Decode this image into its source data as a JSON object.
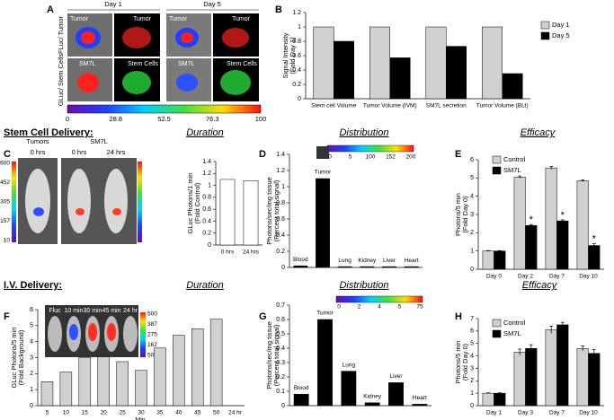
{
  "figure": {
    "sections": [
      "Stem Cell Delivery:",
      "I.V. Delivery:"
    ],
    "panel_a": {
      "letter": "A",
      "columns": [
        "Day 1",
        "Day 5"
      ],
      "rows": [
        "FLuc/ Tumor",
        "GLuc/ Stem Cells"
      ],
      "tiles": [
        "Tumor",
        "Tumor",
        "Tumor",
        "Tumor",
        "SM7L",
        "Stem Cells",
        "SM7L",
        "Stem Cells"
      ],
      "colorbar": [
        0,
        28.8,
        52.5,
        76.3,
        100
      ]
    },
    "panel_c": {
      "groups": [
        "Tumors",
        "SM7L"
      ],
      "times": [
        "0 hrs",
        "0 hrs",
        "24 hrs"
      ],
      "colorbar": [
        600,
        452,
        305,
        157,
        10
      ]
    },
    "panel_d": {
      "colorbar": [
        0,
        5,
        100,
        152,
        200
      ]
    },
    "panel_f": {
      "times": [
        "Fluc",
        "10 min",
        "30 min",
        "45 min",
        "24 hr"
      ],
      "colorbar": [
        500,
        387,
        275,
        162,
        50
      ]
    },
    "panel_g": {
      "colorbar": [
        0,
        2,
        4,
        5,
        75
      ]
    }
  },
  "chart_data": [
    {
      "type": "bar",
      "panel": "B",
      "ylabel": [
        "Signal Intensity",
        "(Fold Day 1)"
      ],
      "categories": [
        "Stem cell Volume",
        "Tumor Volume (IVM)",
        "SM7L secretion",
        "Tumor Volume (BLI)"
      ],
      "series": [
        {
          "name": "Day 1",
          "color": "#d0d0d0",
          "values": [
            1,
            1,
            1,
            1
          ]
        },
        {
          "name": "Day 5",
          "color": "#000000",
          "values": [
            0.8,
            0.57,
            0.73,
            0.35
          ]
        }
      ],
      "ylim": [
        0,
        1.2
      ],
      "yticks": [
        0,
        0.2,
        0.4,
        0.6,
        0.8,
        1,
        1.2
      ]
    },
    {
      "type": "bar",
      "panel": "",
      "title": "Duration",
      "ylabel": [
        "GLuc Photons/1 min",
        "(Fold Control)"
      ],
      "categories": [
        "0 hrs",
        "24 hrs"
      ],
      "series": [
        {
          "color": "#ffffff",
          "values": [
            1.1,
            1.08
          ]
        }
      ],
      "ylim": [
        0,
        1.4
      ],
      "yticks": [
        0,
        0.2,
        0.4,
        0.6,
        0.8,
        1,
        1.2,
        1.4
      ]
    },
    {
      "type": "bar",
      "panel": "D",
      "title": "Distribution",
      "ylabel": [
        "Photons/sec/mg tissue",
        "(Percent total signal)"
      ],
      "categories": [
        "Blood",
        "Tumor",
        "Lung",
        "Kidney",
        "Liver",
        "Heart"
      ],
      "series": [
        {
          "color": "#000000",
          "values": [
            0.02,
            1.1,
            0.01,
            0.01,
            0.01,
            0.01
          ]
        }
      ],
      "ylim": [
        0,
        1.4
      ],
      "yticks": [
        0,
        0.2,
        0.4,
        0.6,
        0.8,
        1,
        1.2,
        1.4
      ]
    },
    {
      "type": "bar",
      "panel": "E",
      "title": "Efficacy",
      "ylabel": [
        "Photons/5 min",
        "(Fold Day 0)"
      ],
      "categories": [
        "Day 0",
        "Day 2",
        "Day 7",
        "Day 10"
      ],
      "series": [
        {
          "name": "Control",
          "color": "#d0d0d0",
          "values": [
            1,
            5.05,
            5.55,
            4.85
          ],
          "errors": [
            0.02,
            0.06,
            0.08,
            0.05
          ]
        },
        {
          "name": "SM7L",
          "color": "#000000",
          "values": [
            1,
            2.4,
            2.65,
            1.3
          ],
          "errors": [
            0.02,
            0.05,
            0.06,
            0.1
          ]
        }
      ],
      "significance": [
        null,
        "*",
        "*",
        "*"
      ],
      "ylim": [
        0,
        6
      ],
      "yticks": [
        0,
        1,
        2,
        3,
        4,
        5,
        6
      ]
    },
    {
      "type": "bar",
      "panel": "F",
      "title": "Duration",
      "ylabel": [
        "GLuc Photons/5 min",
        "(Fold Background)"
      ],
      "xlabel": "Min.",
      "categories": [
        "5",
        "10",
        "15",
        "20",
        "25",
        "30",
        "35",
        "40",
        "45",
        "50",
        "24 hr"
      ],
      "series": [
        {
          "color": "#d0d0d0",
          "values": [
            1.5,
            2.1,
            3.0,
            3.05,
            2.75,
            2.2,
            3.6,
            4.4,
            4.8,
            5.4,
            null
          ]
        }
      ],
      "ylim": [
        0,
        6
      ],
      "yticks": [
        0,
        1,
        2,
        3,
        4,
        5,
        6
      ]
    },
    {
      "type": "bar",
      "panel": "G",
      "title": "Distribution",
      "ylabel": [
        "Photons/sec/mg tissue",
        "(Percent total signal)"
      ],
      "categories": [
        "Blood",
        "Tumor",
        "Lung",
        "Kidney",
        "Liver",
        "Heart"
      ],
      "series": [
        {
          "color": "#000000",
          "values": [
            0.08,
            0.6,
            0.24,
            0.02,
            0.16,
            0.01
          ]
        }
      ],
      "ylim": [
        0,
        0.7
      ],
      "yticks": [
        0,
        0.1,
        0.2,
        0.3,
        0.4,
        0.5,
        0.6,
        0.7
      ]
    },
    {
      "type": "bar",
      "panel": "H",
      "title": "Efficacy",
      "ylabel": [
        "Photons/5 min",
        "(Fold Day 0)"
      ],
      "categories": [
        "Day 1",
        "Day 3",
        "Day 7",
        "Day 10"
      ],
      "series": [
        {
          "name": "Control",
          "color": "#d0d0d0",
          "values": [
            1,
            4.3,
            6.1,
            4.6
          ],
          "errors": [
            0.03,
            0.25,
            0.3,
            0.2
          ]
        },
        {
          "name": "SM7L",
          "color": "#000000",
          "values": [
            1,
            4.6,
            6.5,
            4.2
          ],
          "errors": [
            0.03,
            0.3,
            0.2,
            0.3
          ]
        }
      ],
      "ylim": [
        0,
        7
      ],
      "yticks": [
        0,
        1,
        2,
        3,
        4,
        5,
        6,
        7
      ]
    }
  ]
}
